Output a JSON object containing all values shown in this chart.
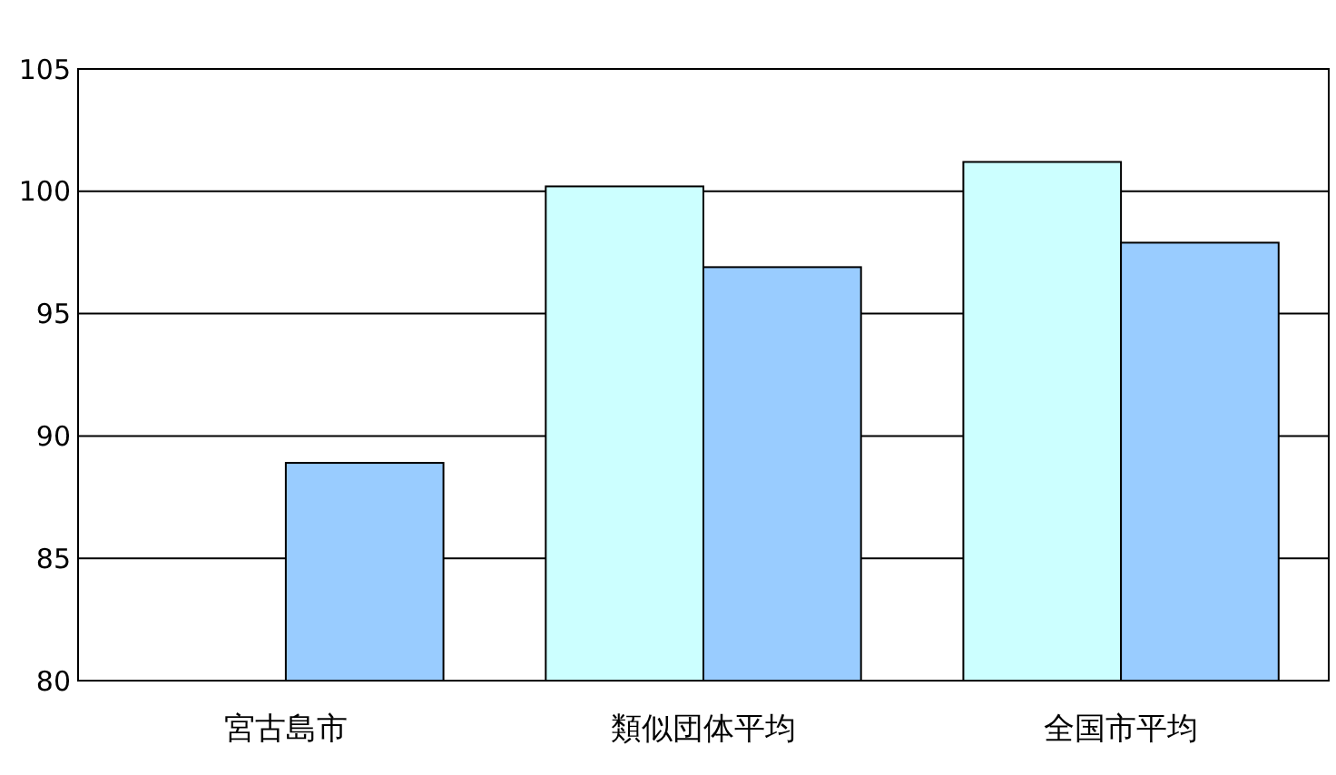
{
  "chart_data": {
    "type": "bar",
    "categories": [
      "宮古島市",
      "類似団体平均",
      "全国市平均"
    ],
    "series": [
      {
        "color": "#ccffff",
        "values": [
          null,
          100.2,
          101.2
        ]
      },
      {
        "color": "#99ccff",
        "values": [
          88.9,
          96.9,
          97.9
        ]
      }
    ],
    "ylim": [
      80,
      105
    ],
    "yticks": [
      80,
      85,
      90,
      95,
      100,
      105
    ],
    "grid": "y"
  }
}
